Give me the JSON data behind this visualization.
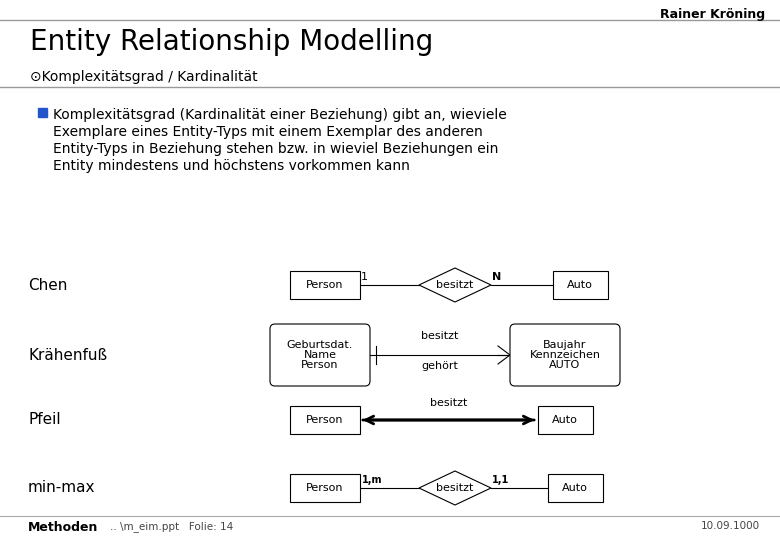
{
  "title": "Entity Relationship Modelling",
  "subtitle": "⊙Komplexitätsgrad / Kardinalität",
  "header_right": "Rainer Kröning",
  "bullet_text_lines": [
    "Komplexitätsgrad (Kardinalität einer Beziehung) gibt an, wieviele",
    "Exemplare eines Entity-Typs mit einem Exemplar des anderen",
    "Entity-Typs in Beziehung stehen bzw. in wieviel Beziehungen ein",
    "Entity mindestens und höchstens vorkommen kann"
  ],
  "footer_left": "Methoden",
  "footer_file": ".. \\m_eim.ppt   Folie: 14",
  "footer_right": "10.09.1000",
  "bg_color": "#ffffff",
  "bullet_color": "#2255cc"
}
